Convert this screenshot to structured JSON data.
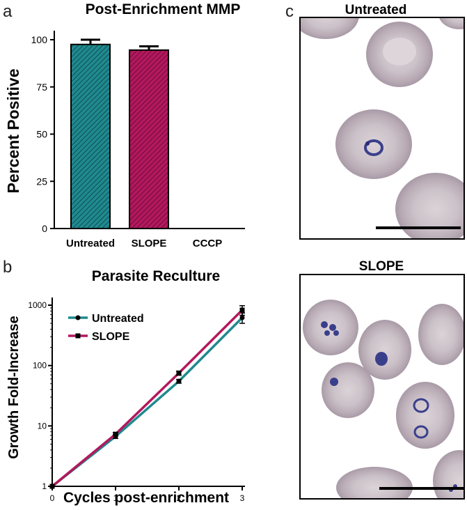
{
  "panels": {
    "a": "a",
    "b": "b",
    "c": "c"
  },
  "colors": {
    "teal": "#1f8a8f",
    "magenta": "#b3185e",
    "black": "#000000"
  },
  "chart_data": [
    {
      "type": "bar",
      "panel": "a",
      "title": "Post-Enrichment MMP",
      "xlabel": "",
      "ylabel": "Percent Positive",
      "categories": [
        "Untreated",
        "SLOPE",
        "CCCP"
      ],
      "values": [
        97.5,
        94.5,
        0
      ],
      "errors": [
        2.5,
        2.0,
        0
      ],
      "colors": [
        "#1f8a8f",
        "#b3185e",
        "#ffffff"
      ],
      "pattern": "diagonal-hatch",
      "ylim": [
        0,
        100
      ],
      "yticks": [
        0,
        25,
        50,
        75,
        100
      ],
      "grid": false
    },
    {
      "type": "line",
      "panel": "b",
      "title": "Parasite Reculture",
      "xlabel": "Cycles post-enrichment",
      "ylabel": "Growth Fold-Increase",
      "yscale": "log",
      "x": [
        0,
        1,
        2,
        3
      ],
      "xticks": [
        "0",
        "1",
        "2",
        "3"
      ],
      "yticks": [
        "1",
        "10",
        "100",
        "1000"
      ],
      "ylim": [
        1,
        1000
      ],
      "xlim": [
        0,
        3
      ],
      "legend_position": "top-left",
      "grid": false,
      "series": [
        {
          "name": "Untreated",
          "values": [
            1,
            6.7,
            55,
            620
          ],
          "errors": [
            0,
            0.5,
            4,
            120
          ],
          "color": "#1f8a8f",
          "marker": "circle"
        },
        {
          "name": "SLOPE",
          "values": [
            1,
            7.3,
            75,
            830
          ],
          "errors": [
            0,
            0.5,
            6,
            150
          ],
          "color": "#b3185e",
          "marker": "square"
        }
      ]
    }
  ],
  "micrographs": [
    {
      "title": "Untreated"
    },
    {
      "title": "SLOPE"
    }
  ]
}
